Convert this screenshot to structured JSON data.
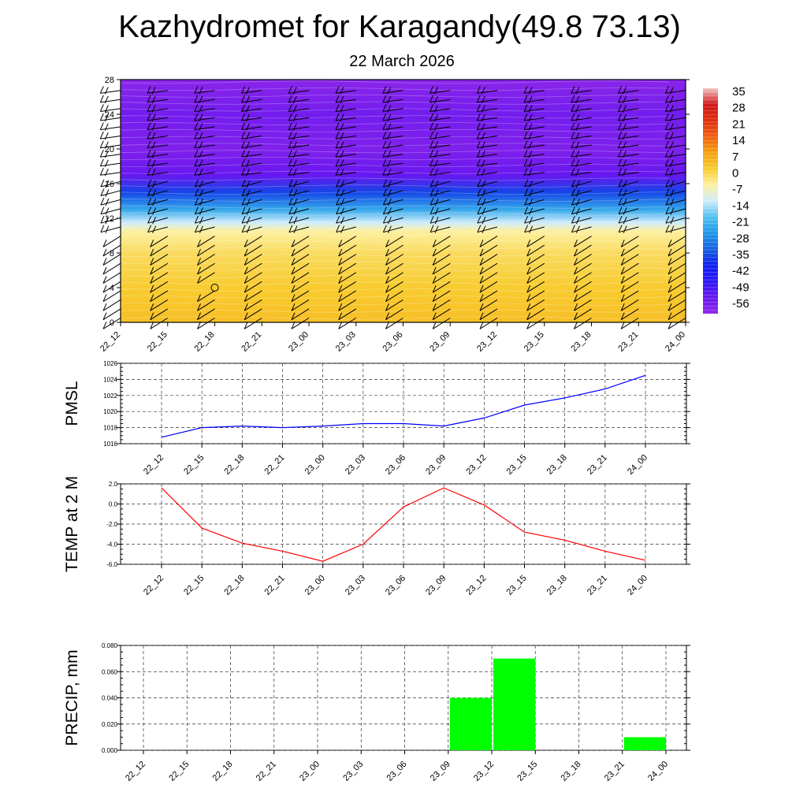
{
  "title": "Kazhydromet for Karagandy(49.8 73.13)",
  "subtitle": "22 March 2026",
  "chart_data": [
    {
      "type": "heatmap",
      "name": "vertical-cross-section",
      "description_unit": "temperature (C) with wind barbs",
      "x_ticks": [
        "22_12",
        "22_15",
        "22_18",
        "22_21",
        "23_00",
        "23_03",
        "23_06",
        "23_09",
        "23_12",
        "23_15",
        "23_18",
        "23_21",
        "24_00"
      ],
      "y_ticks": [
        0,
        4,
        8,
        12,
        16,
        20,
        24,
        28
      ],
      "ylim": [
        0,
        28
      ],
      "temperature_profile": [
        {
          "level": 0,
          "value": 2
        },
        {
          "level": 4,
          "value": 0
        },
        {
          "level": 8,
          "value": -3
        },
        {
          "level": 10.5,
          "value": -7
        },
        {
          "level": 11.5,
          "value": -14
        },
        {
          "level": 13,
          "value": -25
        },
        {
          "level": 15,
          "value": -38
        },
        {
          "level": 17,
          "value": -56
        },
        {
          "level": 20,
          "value": -60
        },
        {
          "level": 24,
          "value": -58
        },
        {
          "level": 28,
          "value": -62
        }
      ],
      "colorbar": {
        "labels": [
          "35",
          "28",
          "21",
          "14",
          "7",
          "0",
          "-7",
          "-14",
          "-21",
          "-28",
          "-35",
          "-42",
          "-49",
          "-56"
        ],
        "stops": [
          {
            "value": 35,
            "color": "#f4c4c4"
          },
          {
            "value": 28,
            "color": "#d01818"
          },
          {
            "value": 21,
            "color": "#e03010"
          },
          {
            "value": 14,
            "color": "#f06010"
          },
          {
            "value": 7,
            "color": "#f6a010"
          },
          {
            "value": 0,
            "color": "#f8cc30"
          },
          {
            "value": -7,
            "color": "#fcf0a0"
          },
          {
            "value": -14,
            "color": "#d0ecfc"
          },
          {
            "value": -21,
            "color": "#50c0f0"
          },
          {
            "value": -28,
            "color": "#2098e8"
          },
          {
            "value": -35,
            "color": "#1860e0"
          },
          {
            "value": -42,
            "color": "#1020f0"
          },
          {
            "value": -49,
            "color": "#3018f8"
          },
          {
            "value": -56,
            "color": "#6818f0"
          },
          {
            "value": -63,
            "color": "#9028e8"
          }
        ]
      }
    },
    {
      "type": "line",
      "name": "pmsl",
      "ylabel": "PMSL",
      "x": [
        "22_12",
        "22_15",
        "22_18",
        "22_21",
        "23_00",
        "23_03",
        "23_06",
        "23_09",
        "23_12",
        "23_15",
        "23_18",
        "23_21",
        "24_00"
      ],
      "values": [
        1016.8,
        1018.0,
        1018.2,
        1018.0,
        1018.2,
        1018.5,
        1018.5,
        1018.2,
        1019.2,
        1020.8,
        1021.7,
        1022.8,
        1024.5
      ],
      "ylim": [
        1016,
        1026
      ],
      "yticks": [
        "1016",
        "1018",
        "1020",
        "1022",
        "1024",
        "1026"
      ],
      "color": "#0000ff"
    },
    {
      "type": "line",
      "name": "temp-2m",
      "ylabel": "TEMP at 2 M",
      "x": [
        "22_12",
        "22_15",
        "22_18",
        "22_21",
        "23_00",
        "23_03",
        "23_06",
        "23_09",
        "23_12",
        "23_15",
        "23_18",
        "23_21",
        "24_00"
      ],
      "values": [
        1.6,
        -2.4,
        -3.9,
        -4.7,
        -5.7,
        -4.0,
        -0.3,
        1.6,
        -0.1,
        -2.8,
        -3.6,
        -4.7,
        -5.6
      ],
      "ylim": [
        -6,
        2
      ],
      "yticks": [
        "-6.0",
        "-4.0",
        "-2.0",
        "0.0",
        "2.0"
      ],
      "color": "#ff0000"
    },
    {
      "type": "bar",
      "name": "precip",
      "ylabel": "PRECIP, mm",
      "categories": [
        "22_12",
        "22_15",
        "22_18",
        "22_21",
        "23_00",
        "23_03",
        "23_06",
        "23_09",
        "23_12",
        "23_15",
        "23_18",
        "23_21",
        "24_00"
      ],
      "values": [
        0,
        0,
        0,
        0,
        0,
        0,
        0,
        0,
        0.04,
        0.07,
        0,
        0,
        0.01
      ],
      "ylim": [
        0,
        0.08
      ],
      "yticks": [
        "0.000",
        "0.020",
        "0.040",
        "0.060",
        "0.080"
      ],
      "color": "#00ff00"
    }
  ]
}
